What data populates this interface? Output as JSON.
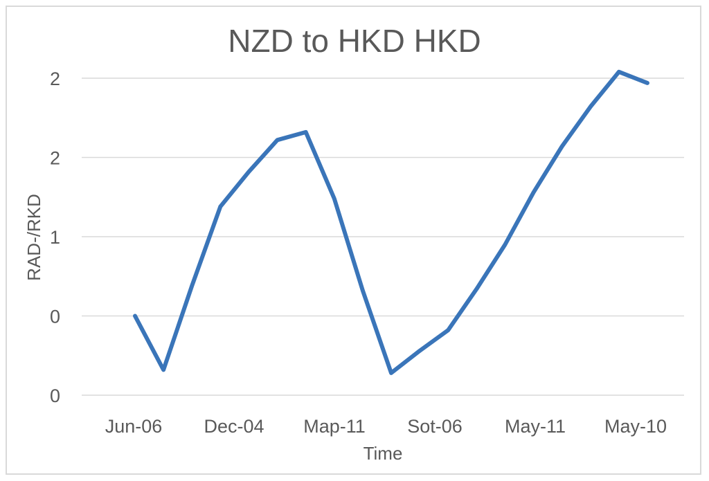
{
  "chart_data": {
    "type": "line",
    "title": "NZD to HKD HKD",
    "xlabel": "Time",
    "ylabel": "RAD-/RKD",
    "ytick_labels": [
      "2",
      "2",
      "1",
      "0",
      "0"
    ],
    "xtick_labels": [
      "Jun-06",
      "Dec-04",
      "Map-11",
      "Sot-06",
      "May-11",
      "May-10"
    ],
    "ylim": [
      0,
      2
    ],
    "grid": true,
    "legend": "none",
    "series": [
      {
        "color": "#3a75b9",
        "x": [
          0,
          1,
          2,
          3,
          4,
          5,
          6,
          7,
          8,
          9,
          10,
          11,
          12,
          13,
          14,
          15,
          16,
          17,
          18
        ],
        "y": [
          0.5,
          0.16,
          0.69,
          1.19,
          1.41,
          1.61,
          1.66,
          1.24,
          0.66,
          0.14,
          0.28,
          0.41,
          0.67,
          0.95,
          1.28,
          1.57,
          1.82,
          2.04,
          1.97
        ]
      }
    ]
  }
}
